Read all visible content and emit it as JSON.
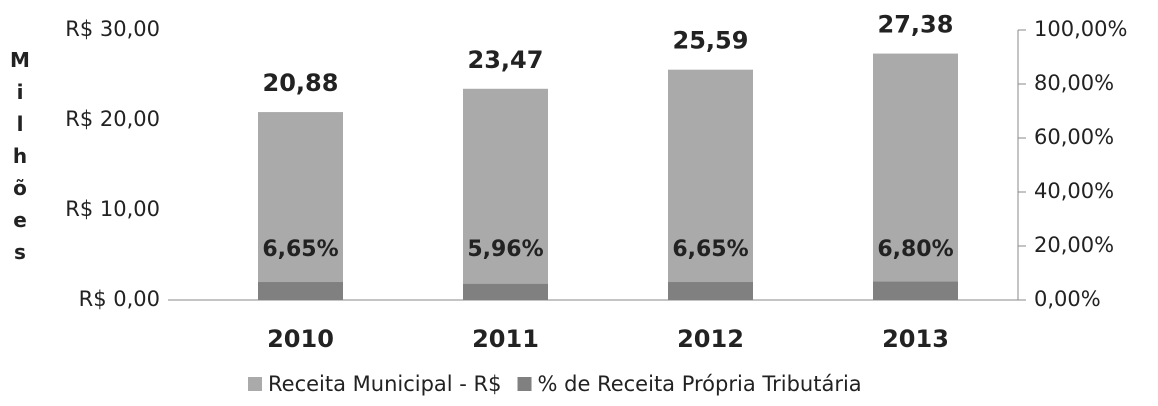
{
  "chart_data": {
    "type": "bar",
    "y_label": "Milhões",
    "categories": [
      "2010",
      "2011",
      "2012",
      "2013"
    ],
    "series": [
      {
        "name": "Receita Municipal - R$",
        "color": "#aaaaaa",
        "values": [
          20.88,
          23.47,
          25.59,
          27.38
        ],
        "value_labels": [
          "20,88",
          "23,47",
          "25,59",
          "27,38"
        ]
      },
      {
        "name": "% de Receita Própria Tributária",
        "color": "#808080",
        "axis": "y2",
        "values": [
          6.65,
          5.96,
          6.65,
          6.8
        ],
        "value_labels": [
          "6,65%",
          "5,96%",
          "6,65%",
          "6,80%"
        ]
      }
    ],
    "ylim": [
      0,
      30
    ],
    "yticks": [
      {
        "value": 0,
        "label": "R$ 0,00"
      },
      {
        "value": 10,
        "label": "R$ 10,00"
      },
      {
        "value": 20,
        "label": "R$ 20,00"
      },
      {
        "value": 30,
        "label": "R$ 30,00"
      }
    ],
    "y2lim": [
      0,
      100
    ],
    "y2ticks": [
      {
        "value": 0,
        "label": "0,00%"
      },
      {
        "value": 20,
        "label": "20,00%"
      },
      {
        "value": 40,
        "label": "40,00%"
      },
      {
        "value": 60,
        "label": "60,00%"
      },
      {
        "value": 80,
        "label": "80,00%"
      },
      {
        "value": 100,
        "label": "100,00%"
      }
    ],
    "legend": "bottom"
  }
}
